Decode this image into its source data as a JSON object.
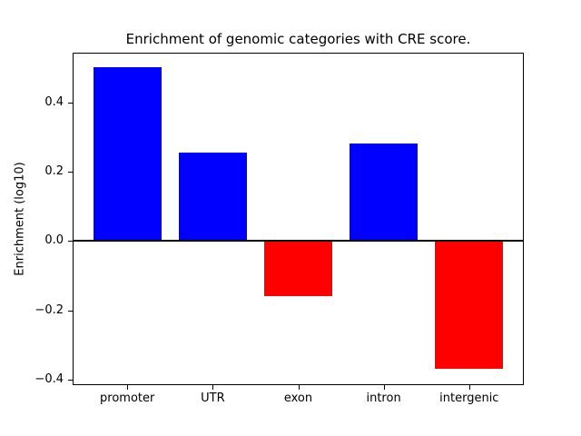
{
  "figure": {
    "title": "Enrichment of genomic categories with CRE score.",
    "ylabel": "Enrichment (log10)"
  },
  "chart_data": {
    "type": "bar",
    "title": "Enrichment of genomic categories with CRE score.",
    "xlabel": "",
    "ylabel": "Enrichment (log10)",
    "categories": [
      "promoter",
      "UTR",
      "exon",
      "intron",
      "intergenic"
    ],
    "values": [
      0.5,
      0.255,
      -0.16,
      0.28,
      -0.37
    ],
    "bar_colors": [
      "#0000ff",
      "#0000ff",
      "#ff0000",
      "#0000ff",
      "#ff0000"
    ],
    "positive_color": "#0000ff",
    "negative_color": "#ff0000",
    "yticks": [
      0.4,
      0.2,
      0.0,
      -0.2,
      -0.4
    ],
    "ytick_labels": [
      "0.4",
      "0.2",
      "0.0",
      "−0.2",
      "−0.4"
    ],
    "ylim": [
      -0.416,
      0.543
    ],
    "bar_width_fraction": 0.8,
    "grid": false,
    "legend": null,
    "zero_line": true,
    "axes_background": "#ffffff",
    "figure_background": "#ffffff"
  }
}
